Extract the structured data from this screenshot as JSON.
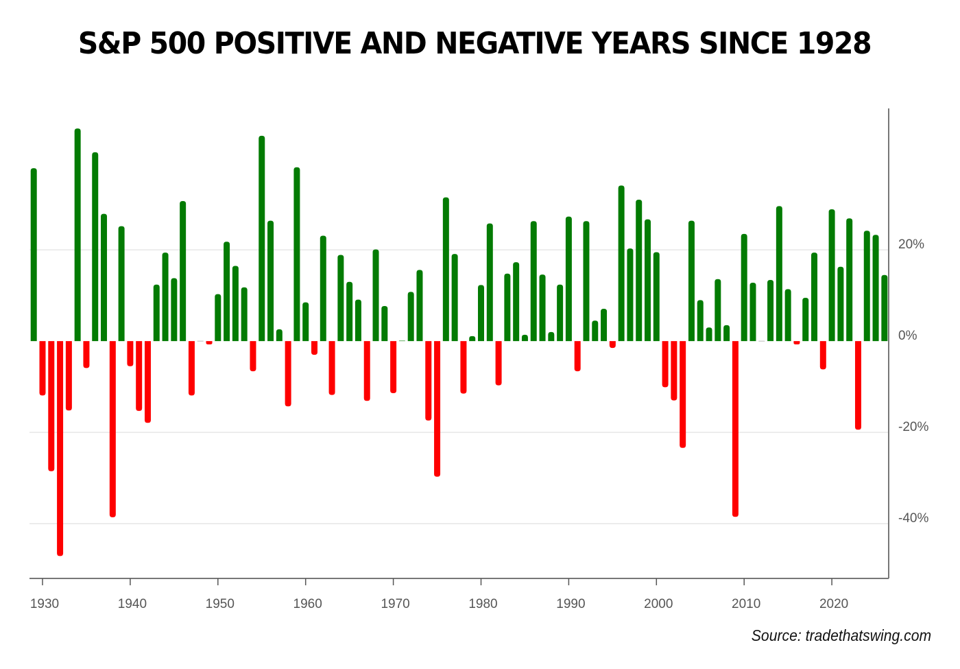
{
  "title": "S&P 500 POSITIVE AND NEGATIVE YEARS SINCE 1928",
  "source": "Source: tradethatswing.com",
  "colors": {
    "positive": "#037b03",
    "negative": "#fe0000",
    "grid": "#e6e6e6",
    "axis": "#777777"
  },
  "chart_data": {
    "type": "bar",
    "title": "S&P 500 POSITIVE AND NEGATIVE YEARS SINCE 1928",
    "xlabel": "",
    "ylabel": "",
    "x_ticks": [
      1930,
      1940,
      1950,
      1960,
      1970,
      1980,
      1990,
      2000,
      2010,
      2020
    ],
    "y_ticks": [
      20,
      0,
      -20,
      -40
    ],
    "y_tick_labels": [
      "20%",
      "0%",
      "-20%",
      "-40%"
    ],
    "y_axis_side": "right",
    "ylim": [
      -52,
      51
    ],
    "grid": true,
    "legend": "none",
    "categories": [
      1928,
      1929,
      1930,
      1931,
      1932,
      1933,
      1934,
      1935,
      1936,
      1937,
      1938,
      1939,
      1940,
      1941,
      1942,
      1943,
      1944,
      1945,
      1946,
      1947,
      1948,
      1949,
      1950,
      1951,
      1952,
      1953,
      1954,
      1955,
      1956,
      1957,
      1958,
      1959,
      1960,
      1961,
      1962,
      1963,
      1964,
      1965,
      1966,
      1967,
      1968,
      1969,
      1970,
      1971,
      1972,
      1973,
      1974,
      1975,
      1976,
      1977,
      1978,
      1979,
      1980,
      1981,
      1982,
      1983,
      1984,
      1985,
      1986,
      1987,
      1988,
      1989,
      1990,
      1991,
      1992,
      1993,
      1994,
      1995,
      1996,
      1997,
      1998,
      1999,
      2000,
      2001,
      2002,
      2003,
      2004,
      2005,
      2006,
      2007,
      2008,
      2009,
      2010,
      2011,
      2012,
      2013,
      2014,
      2015,
      2016,
      2017,
      2018,
      2019,
      2020,
      2021,
      2022,
      2023,
      2024,
      2025
    ],
    "values": [
      37.9,
      -11.9,
      -28.5,
      -47.1,
      -15.2,
      46.6,
      -5.9,
      41.4,
      27.9,
      -38.6,
      25.2,
      -5.5,
      -15.3,
      -17.9,
      12.4,
      19.4,
      13.8,
      30.7,
      -11.9,
      0.0,
      -0.7,
      10.3,
      21.8,
      16.5,
      11.8,
      -6.6,
      45.0,
      26.4,
      2.6,
      -14.3,
      38.1,
      8.5,
      -3.0,
      23.1,
      -11.8,
      18.9,
      13.0,
      9.1,
      -13.1,
      20.1,
      7.7,
      -11.4,
      0.1,
      10.8,
      15.6,
      -17.4,
      -29.7,
      31.5,
      19.1,
      -11.5,
      1.1,
      12.3,
      25.8,
      -9.7,
      14.8,
      17.3,
      1.4,
      26.3,
      14.6,
      2.0,
      12.4,
      27.3,
      -6.6,
      26.3,
      4.5,
      7.1,
      -1.5,
      34.1,
      20.3,
      31.0,
      26.7,
      19.5,
      -10.1,
      -13.0,
      -23.4,
      26.4,
      9.0,
      3.0,
      13.6,
      3.5,
      -38.5,
      23.5,
      12.8,
      0.0,
      13.4,
      29.6,
      11.4,
      -0.7,
      9.5,
      19.4,
      -6.2,
      28.9,
      16.3,
      26.9,
      -19.4,
      24.2,
      23.3,
      14.5
    ]
  }
}
